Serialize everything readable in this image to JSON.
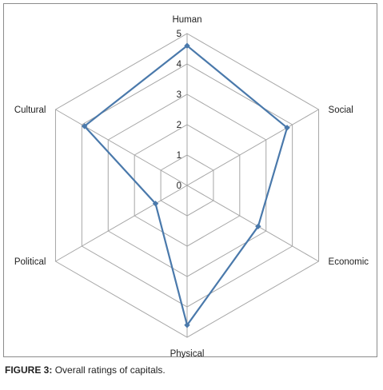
{
  "caption": {
    "label": "FIGURE 3:",
    "text": "Overall ratings of capitals."
  },
  "chart_data": {
    "type": "radar",
    "categories": [
      "Human",
      "Social",
      "Economic",
      "Physical",
      "Political",
      "Cultural"
    ],
    "series": [
      {
        "values": [
          4.6,
          3.8,
          2.7,
          4.6,
          1.2,
          3.9
        ]
      }
    ],
    "rlim": [
      0,
      5
    ],
    "ticks": [
      0,
      1,
      2,
      3,
      4,
      5
    ],
    "grid": true,
    "line_color": "#4a79ab",
    "grid_color": "#a6a6a6"
  }
}
